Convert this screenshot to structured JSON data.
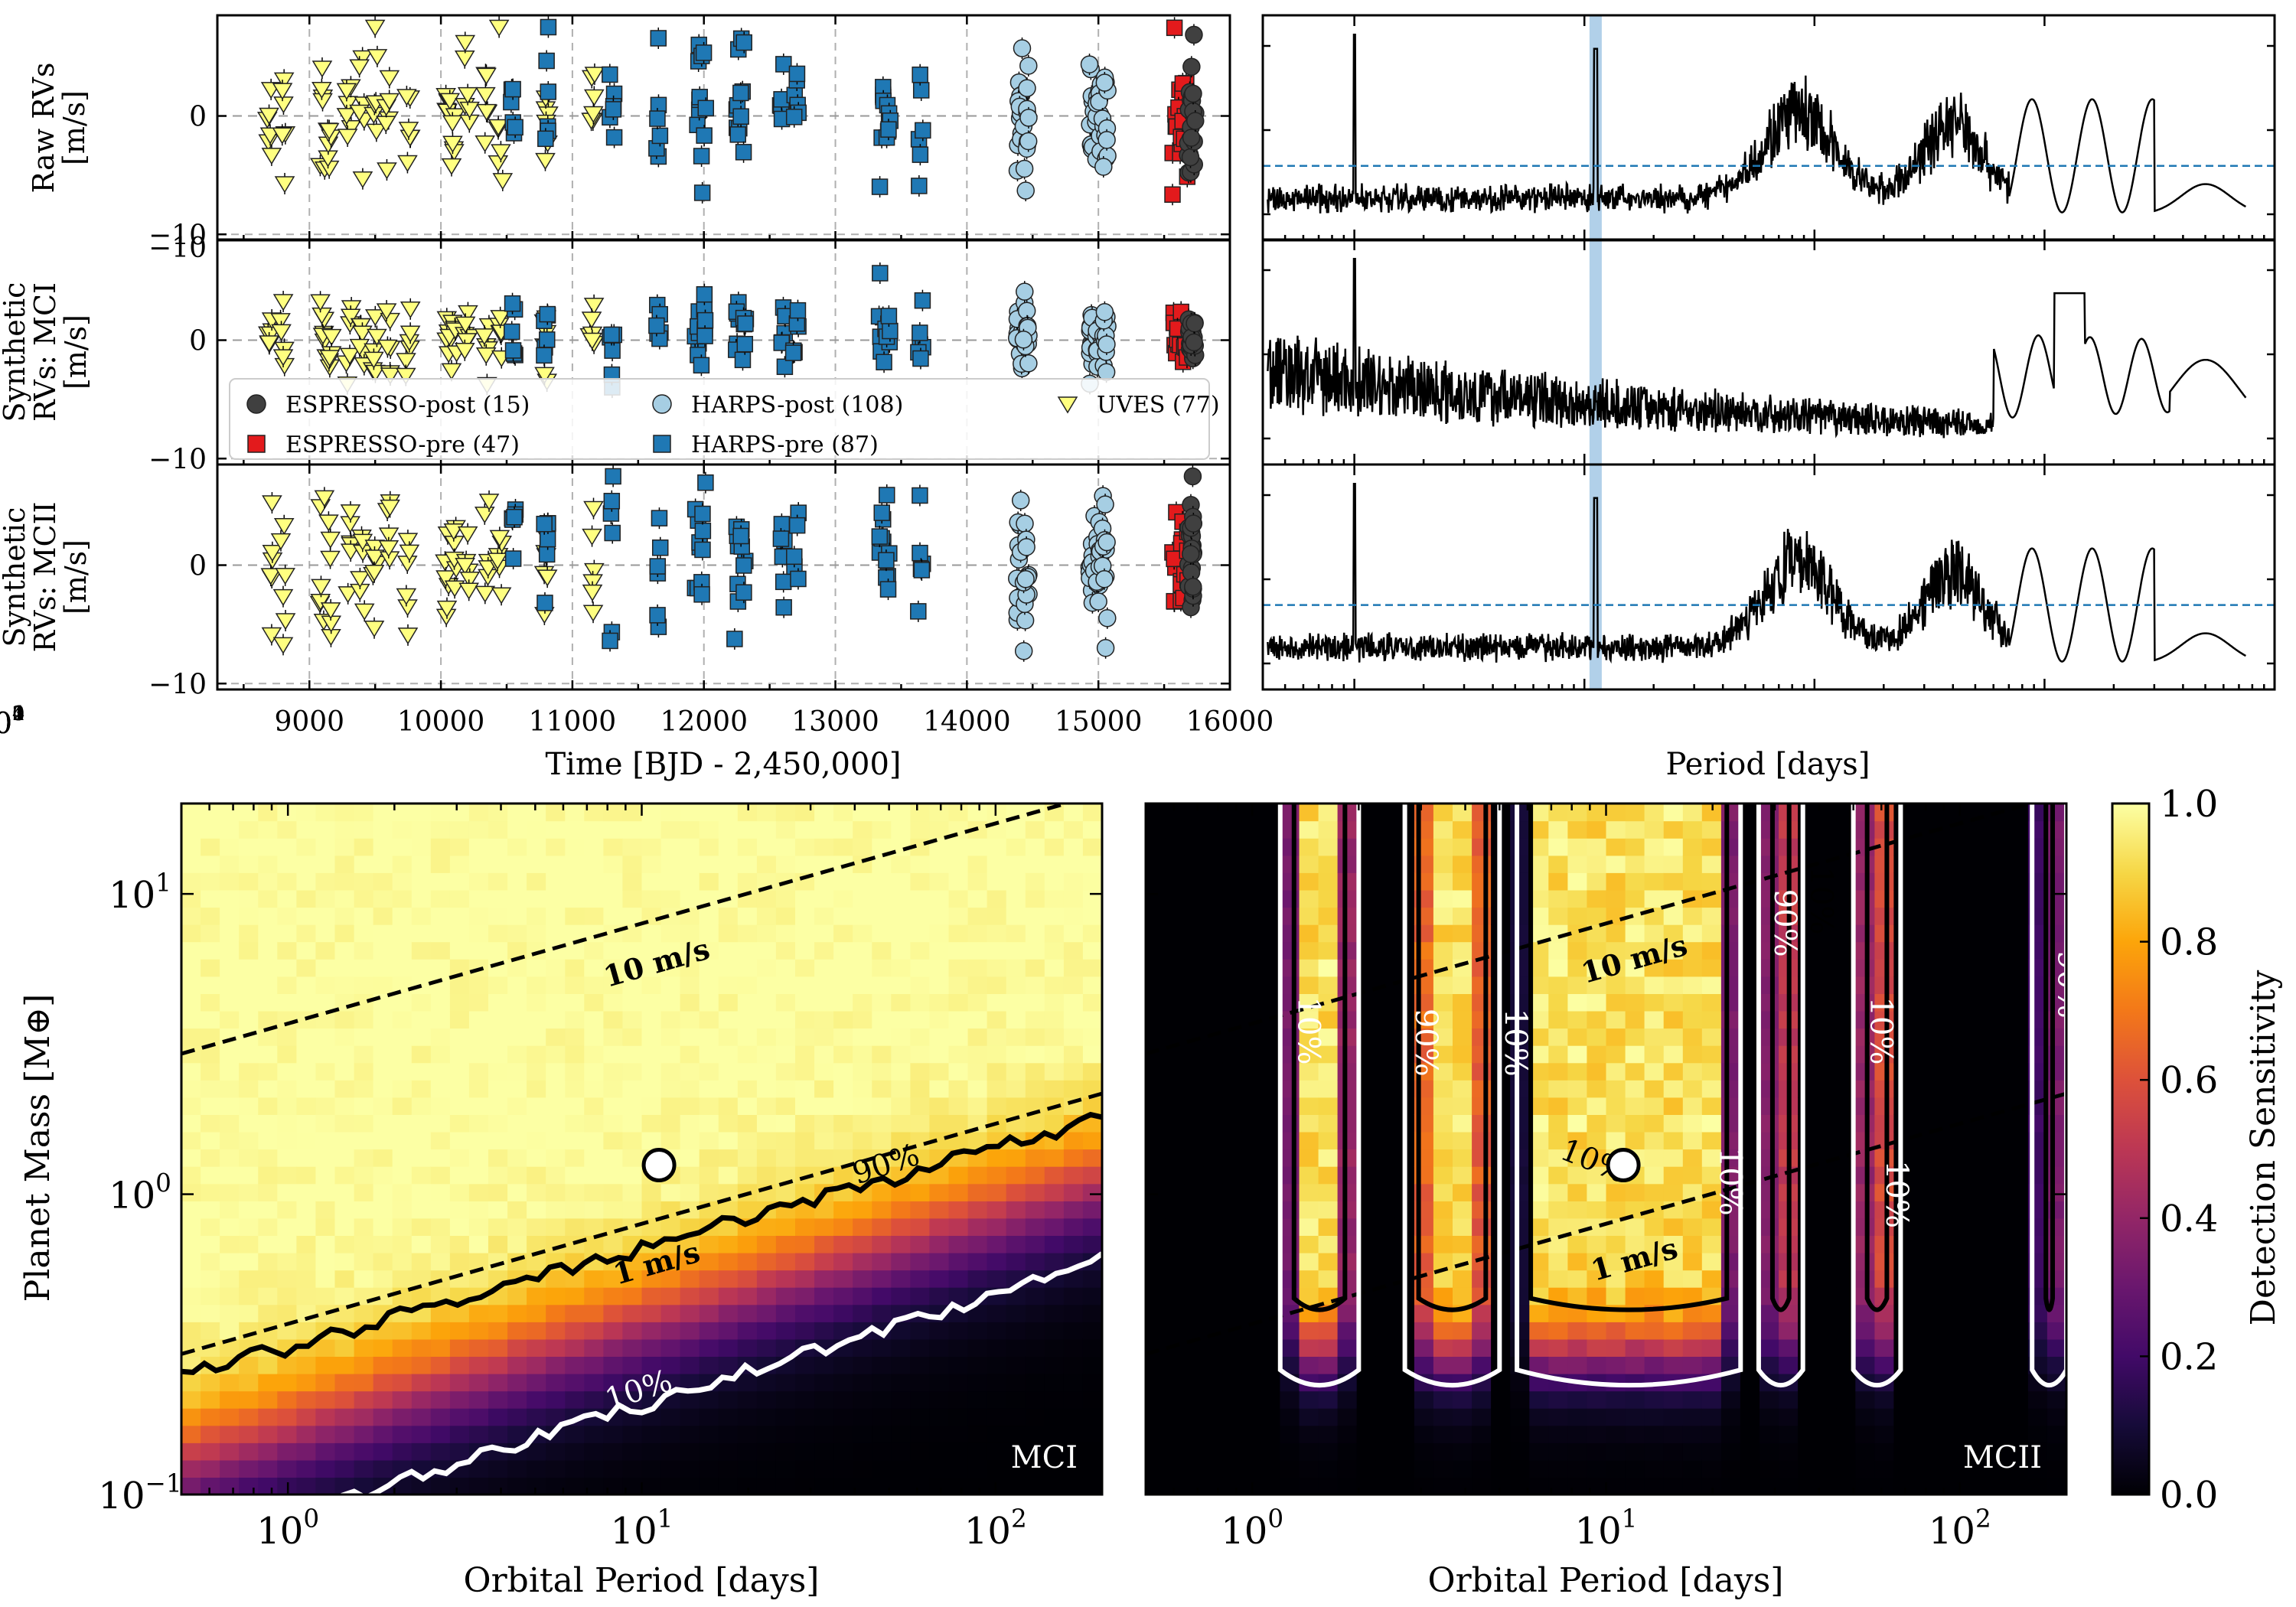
{
  "chart_data": [
    {
      "id": "rv_timeseries",
      "type": "scatter",
      "panels": [
        {
          "ylabel": [
            "Raw RVs",
            "[m/s]"
          ],
          "yticks": [
            0,
            -10
          ]
        },
        {
          "ylabel": [
            "Synthetic",
            "RVs: MCI",
            "[m/s]"
          ],
          "yticks": [
            -10,
            0,
            -10
          ]
        },
        {
          "ylabel": [
            "Synthetic",
            "RVs: MCII",
            "[m/s]"
          ],
          "yticks": [
            0,
            -10
          ]
        }
      ],
      "xlabel": "Time [BJD - 2,450,000]",
      "xlim": [
        8300,
        16000
      ],
      "xticks": [
        9000,
        10000,
        11000,
        12000,
        13000,
        14000,
        15000,
        16000
      ],
      "ylim": [
        -10.5,
        8.5
      ],
      "grid": true,
      "legend": {
        "placement": "lower-center of middle panel",
        "entries": [
          {
            "label": "ESPRESSO-post (15)",
            "marker": "circle",
            "color": "#404040"
          },
          {
            "label": "HARPS-post (108)",
            "marker": "circle",
            "color": "#a6cee3"
          },
          {
            "label": "UVES (77)",
            "marker": "triangle-down",
            "color": "#ffff80"
          },
          {
            "label": "ESPRESSO-pre (47)",
            "marker": "square",
            "color": "#e31a1c"
          },
          {
            "label": "HARPS-pre (87)",
            "marker": "square",
            "color": "#1f78b4"
          }
        ]
      },
      "series": [
        {
          "name": "UVES (77)",
          "color": "#ffff80",
          "marker": "triangle-down",
          "epochs": [
            8700,
            8800,
            9100,
            9150,
            9300,
            9400,
            9500,
            9600,
            9750,
            10050,
            10100,
            10200,
            10350,
            10450,
            10800,
            11150
          ]
        },
        {
          "name": "HARPS-pre (87)",
          "color": "#1f78b4",
          "marker": "square",
          "epochs": [
            10550,
            10800,
            11300,
            11650,
            11950,
            12000,
            12250,
            12300,
            12600,
            12700,
            13350,
            13400,
            13650
          ]
        },
        {
          "name": "HARPS-post (108)",
          "color": "#a6cee3",
          "marker": "circle",
          "epochs": [
            14400,
            14450,
            14950,
            15000,
            15050
          ]
        },
        {
          "name": "ESPRESSO-pre (47)",
          "color": "#e31a1c",
          "marker": "square",
          "epochs": [
            15580,
            15620,
            15660
          ]
        },
        {
          "name": "ESPRESSO-post (15)",
          "color": "#404040",
          "marker": "circle",
          "epochs": [
            15700,
            15720
          ]
        }
      ]
    },
    {
      "id": "periodograms",
      "type": "line",
      "xscale": "log",
      "xlabel": "Period [days]",
      "xlim": [
        0.4,
        10000
      ],
      "xticks": [
        {
          "base": "10",
          "exp": "0",
          "v": 1
        },
        {
          "base": "10",
          "exp": "1",
          "v": 10
        },
        {
          "base": "10",
          "exp": "2",
          "v": 100
        },
        {
          "base": "10",
          "exp": "3",
          "v": 1000
        },
        {
          "base": "10",
          "exp": "4",
          "v": 10000
        }
      ],
      "highlight_period": 11.19,
      "threshold_fraction": [
        0.3,
        null,
        0.35
      ],
      "peaks": [
        {
          "period": 1.0,
          "level": 0.95
        },
        {
          "period": 11.19,
          "level": 0.88
        },
        {
          "period": 85,
          "level": 0.8
        },
        {
          "period": 400,
          "level": 0.6
        },
        {
          "period": 1900,
          "level": 0.65
        }
      ]
    },
    {
      "id": "sensitivity_MCI",
      "type": "heatmap",
      "panel_label": "MCI",
      "xscale": "log",
      "yscale": "log",
      "xlabel": "Orbital Period [days]",
      "ylabel": "Planet Mass [M⊕]",
      "xlim": [
        0.5,
        200
      ],
      "ylim": [
        0.1,
        20
      ],
      "xticks": [
        {
          "base": "10",
          "exp": "0",
          "v": 1
        },
        {
          "base": "10",
          "exp": "1",
          "v": 10
        },
        {
          "base": "10",
          "exp": "2",
          "v": 100
        }
      ],
      "yticks": [
        {
          "base": "10",
          "exp": "−1",
          "v": 0.1
        },
        {
          "base": "10",
          "exp": "0",
          "v": 1
        },
        {
          "base": "10",
          "exp": "1",
          "v": 10
        }
      ],
      "contours": [
        {
          "label": "90%",
          "color": "#000000",
          "mass_at_p1": 0.31,
          "slope": 0.33
        },
        {
          "label": "10%",
          "color": "#ffffff",
          "mass_at_p1": 0.085,
          "slope": 0.37
        }
      ],
      "rv_lines": [
        {
          "label": "10 m/s",
          "mass_at_p1": 3.7,
          "slope": 0.3333
        },
        {
          "label": "1 m/s",
          "mass_at_p1": 0.37,
          "slope": 0.3333
        }
      ],
      "planet": {
        "period": 11.19,
        "mass": 1.25
      }
    },
    {
      "id": "sensitivity_MCII",
      "type": "heatmap",
      "panel_label": "MCII",
      "xscale": "log",
      "yscale": "log",
      "xlabel": "Orbital Period [days]",
      "xlim": [
        0.5,
        200
      ],
      "ylim": [
        0.1,
        20
      ],
      "xticks": [
        {
          "base": "10",
          "exp": "0",
          "v": 1
        },
        {
          "base": "10",
          "exp": "1",
          "v": 10
        },
        {
          "base": "10",
          "exp": "2",
          "v": 100
        }
      ],
      "sensitive_bands": [
        [
          1.2,
          2.0
        ],
        [
          2.7,
          5.0
        ],
        [
          5.6,
          24
        ],
        [
          27,
          36
        ],
        [
          50,
          68
        ],
        [
          160,
          200
        ]
      ],
      "contour_labels": [
        "10%",
        "90%",
        "10%",
        "90%",
        "10%",
        "10%",
        "90%",
        "10%",
        "10%",
        "10%",
        "90%",
        "10%",
        "90%"
      ],
      "rv_lines": [
        {
          "label": "10 m/s",
          "mass_at_p1": 3.7,
          "slope": 0.3333
        },
        {
          "label": "1 m/s",
          "mass_at_p1": 0.37,
          "slope": 0.3333
        }
      ],
      "planet": {
        "period": 11.19,
        "mass": 1.25
      },
      "colorbar": {
        "label": "Detection Sensitivity",
        "range": [
          0,
          1
        ],
        "ticks": [
          "0.0",
          "0.2",
          "0.4",
          "0.6",
          "0.8",
          "1.0"
        ],
        "colormap": "inferno"
      }
    }
  ]
}
